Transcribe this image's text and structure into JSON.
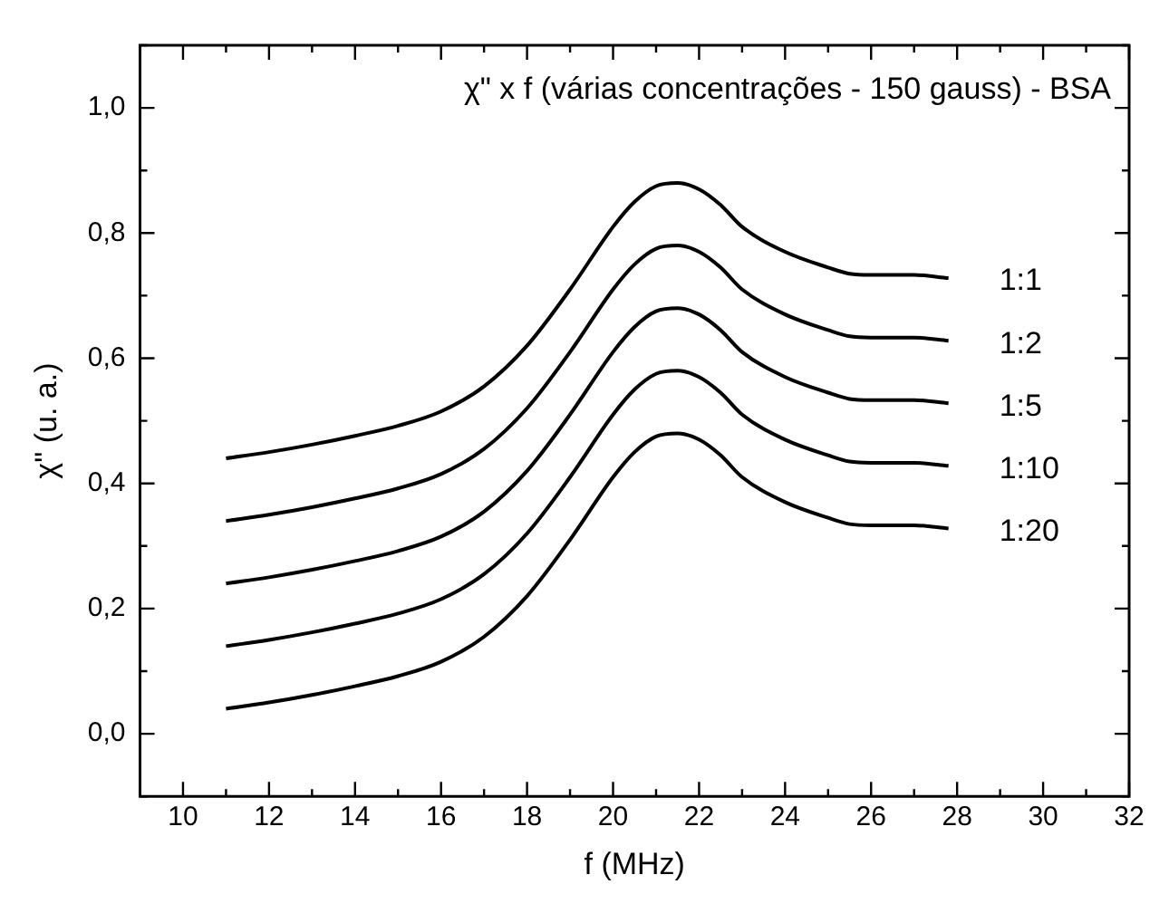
{
  "chart_data": {
    "type": "line",
    "title": "χ\" x f (várias concentrações - 150 gauss) - BSA",
    "xlabel": "f (MHz)",
    "ylabel": "χ\" (u. a.)",
    "x": [
      11,
      12,
      13,
      14,
      15,
      16,
      17,
      18,
      19,
      20,
      20.5,
      21,
      21.5,
      22,
      22.5,
      23,
      24,
      25,
      25.5,
      26,
      27,
      27.8
    ],
    "series": [
      {
        "name": "1:1",
        "color": "#000000",
        "values": [
          0.44,
          0.45,
          0.462,
          0.476,
          0.492,
          0.515,
          0.555,
          0.62,
          0.71,
          0.81,
          0.85,
          0.875,
          0.88,
          0.87,
          0.845,
          0.81,
          0.77,
          0.745,
          0.735,
          0.733,
          0.733,
          0.728
        ]
      },
      {
        "name": "1:2",
        "color": "#000000",
        "values": [
          0.34,
          0.35,
          0.362,
          0.376,
          0.392,
          0.415,
          0.455,
          0.52,
          0.61,
          0.71,
          0.75,
          0.775,
          0.78,
          0.77,
          0.745,
          0.71,
          0.67,
          0.645,
          0.635,
          0.633,
          0.633,
          0.628
        ]
      },
      {
        "name": "1:5",
        "color": "#000000",
        "values": [
          0.24,
          0.25,
          0.262,
          0.276,
          0.292,
          0.315,
          0.355,
          0.42,
          0.51,
          0.61,
          0.65,
          0.675,
          0.68,
          0.67,
          0.645,
          0.61,
          0.57,
          0.545,
          0.535,
          0.533,
          0.533,
          0.528
        ]
      },
      {
        "name": "1:10",
        "color": "#000000",
        "values": [
          0.14,
          0.15,
          0.162,
          0.176,
          0.192,
          0.215,
          0.255,
          0.32,
          0.41,
          0.51,
          0.55,
          0.575,
          0.58,
          0.57,
          0.545,
          0.51,
          0.47,
          0.445,
          0.435,
          0.433,
          0.433,
          0.428
        ]
      },
      {
        "name": "1:20",
        "color": "#000000",
        "values": [
          0.04,
          0.05,
          0.062,
          0.076,
          0.092,
          0.115,
          0.155,
          0.22,
          0.31,
          0.41,
          0.45,
          0.475,
          0.48,
          0.47,
          0.445,
          0.41,
          0.37,
          0.345,
          0.335,
          0.333,
          0.333,
          0.328
        ]
      }
    ],
    "xlim": [
      9,
      32
    ],
    "xticks": [
      {
        "value": 9,
        "label": null
      },
      10,
      {
        "value": 11,
        "label": null
      },
      12,
      {
        "value": 13,
        "label": null
      },
      14,
      {
        "value": 15,
        "label": null
      },
      16,
      {
        "value": 17,
        "label": null
      },
      18,
      {
        "value": 19,
        "label": null
      },
      20,
      {
        "value": 21,
        "label": null
      },
      22,
      {
        "value": 23,
        "label": null
      },
      24,
      {
        "value": 25,
        "label": null
      },
      26,
      {
        "value": 27,
        "label": null
      },
      28,
      {
        "value": 29,
        "label": null
      },
      30,
      {
        "value": 31,
        "label": null
      },
      32
    ],
    "ylim": [
      -0.1,
      1.1
    ],
    "yticks": [
      {
        "value": -0.1,
        "label": null
      },
      {
        "value": 0,
        "label": "0,0"
      },
      {
        "value": 0.1,
        "label": null
      },
      {
        "value": 0.2,
        "label": "0,2"
      },
      {
        "value": 0.3,
        "label": null
      },
      {
        "value": 0.4,
        "label": "0,4"
      },
      {
        "value": 0.5,
        "label": null
      },
      {
        "value": 0.6,
        "label": "0,6"
      },
      {
        "value": 0.7,
        "label": null
      },
      {
        "value": 0.8,
        "label": "0,8"
      },
      {
        "value": 0.9,
        "label": null
      },
      {
        "value": 1,
        "label": "1,0"
      },
      {
        "value": 1.1,
        "label": null
      }
    ],
    "grid": false,
    "legend": "right",
    "marker": "none",
    "line_style": "solid"
  }
}
